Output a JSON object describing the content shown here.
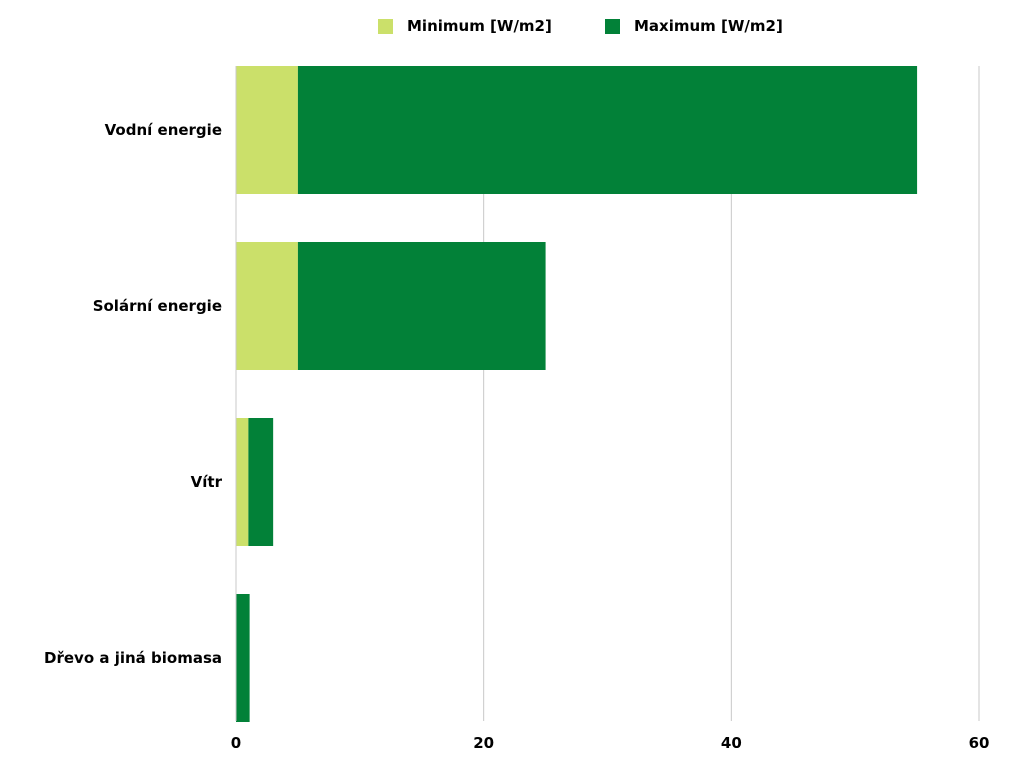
{
  "chart_data": {
    "type": "bar",
    "orientation": "horizontal",
    "stacked": true,
    "categories": [
      "Vodní energie",
      "Solární energie",
      "Vítr",
      "Dřevo a jiná biomasa"
    ],
    "series": [
      {
        "name": "Minimum [W/m2]",
        "values": [
          5,
          5,
          1,
          0
        ],
        "color": "#cbe06a"
      },
      {
        "name": "Maximum [W/m2]",
        "values": [
          50,
          20,
          2,
          1.1
        ],
        "color": "#028138"
      }
    ],
    "x_ticks": [
      0,
      20,
      40,
      60
    ],
    "xlim": [
      0,
      60
    ],
    "grid": "vertical",
    "legend_position": "top-center",
    "title": "",
    "xlabel": "",
    "ylabel": ""
  }
}
